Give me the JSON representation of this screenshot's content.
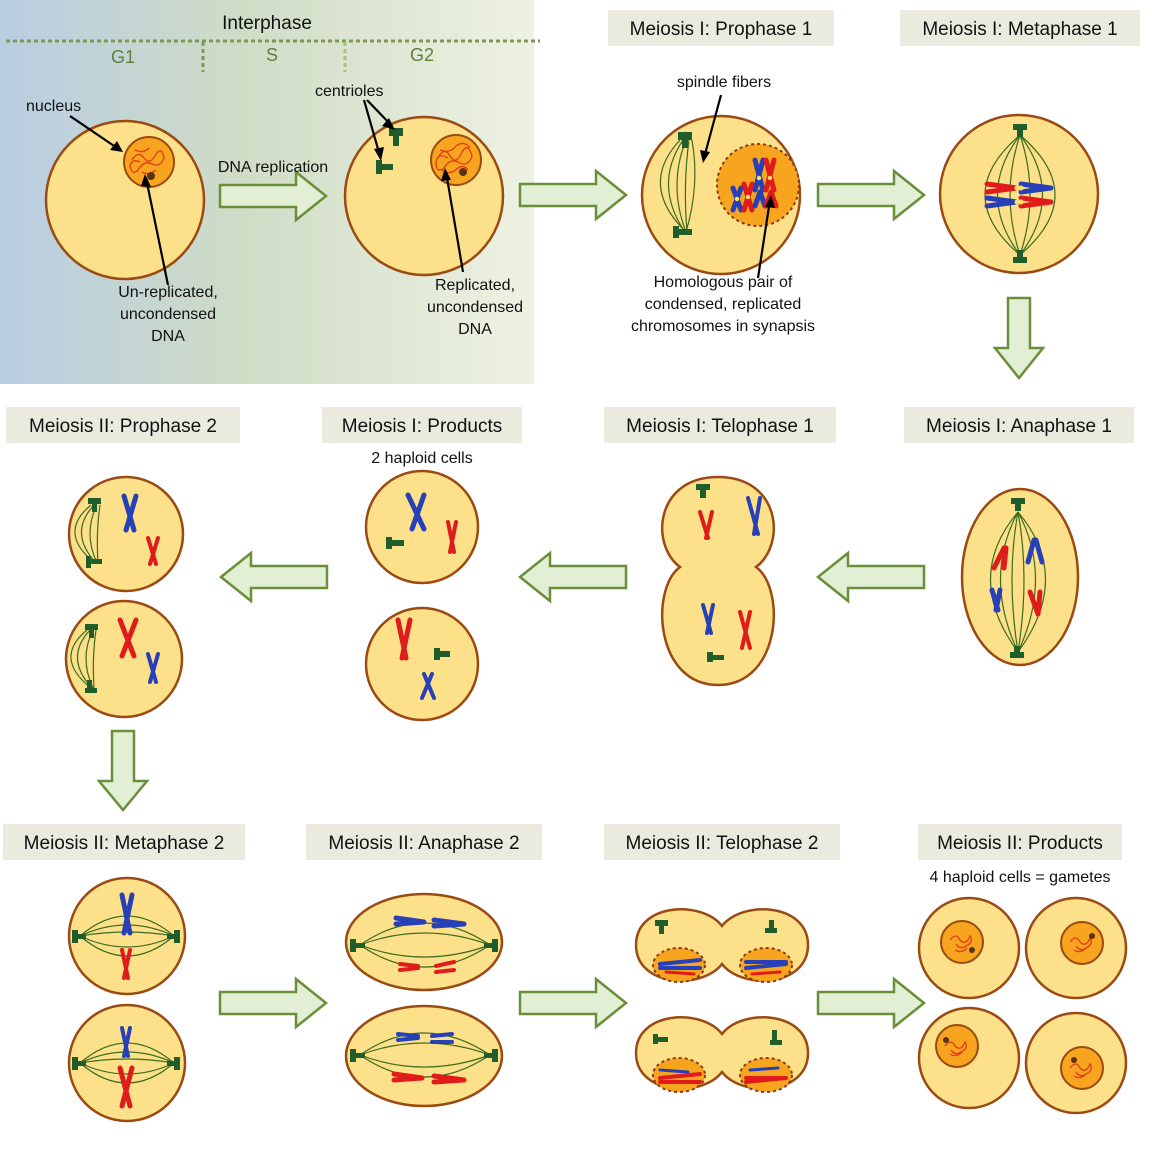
{
  "colors": {
    "cell_fill": "#fde08a",
    "cell_outline": "#9a4a12",
    "nucleus_fill": "#f7a51e",
    "chromosome_red": "#e01b1b",
    "chromosome_blue": "#2740b8",
    "centriole": "#1f5d2a",
    "spindle": "#3e6b1e",
    "arrow_fill": "#e2efd4",
    "arrow_stroke": "#6a8f3a",
    "title_box": "#eaeadf",
    "interphase_band_left": "#b9cde3",
    "interphase_band_right": "#e6edd4"
  },
  "interphase": {
    "title": "Interphase",
    "phases": [
      "G1",
      "S",
      "G2"
    ]
  },
  "labels": {
    "nucleus": "nucleus",
    "centrioles": "centrioles",
    "dna_replication": "DNA replication",
    "unreplicated": [
      "Un-replicated,",
      "uncondensed",
      "DNA"
    ],
    "replicated": [
      "Replicated,",
      "uncondensed",
      "DNA"
    ],
    "spindle_fibers": "spindle fibers",
    "homologous": [
      "Homologous pair of",
      "condensed, replicated",
      "chromosomes in synapsis"
    ]
  },
  "stages": {
    "prophase1": "Meiosis I: Prophase  1",
    "metaphase1": "Meiosis I: Metaphase  1",
    "anaphase1": "Meiosis I: Anaphase  1",
    "telophase1": "Meiosis I: Telophase  1",
    "products1": "Meiosis I: Products",
    "prophase2": "Meiosis II: Prophase  2",
    "metaphase2": "Meiosis II: Metaphase  2",
    "anaphase2": "Meiosis II: Anaphase  2",
    "telophase2": "Meiosis II: Telophase  2",
    "products2": "Meiosis II: Products"
  },
  "subtitles": {
    "products1": "2 haploid cells",
    "products2": "4 haploid cells = gametes"
  }
}
